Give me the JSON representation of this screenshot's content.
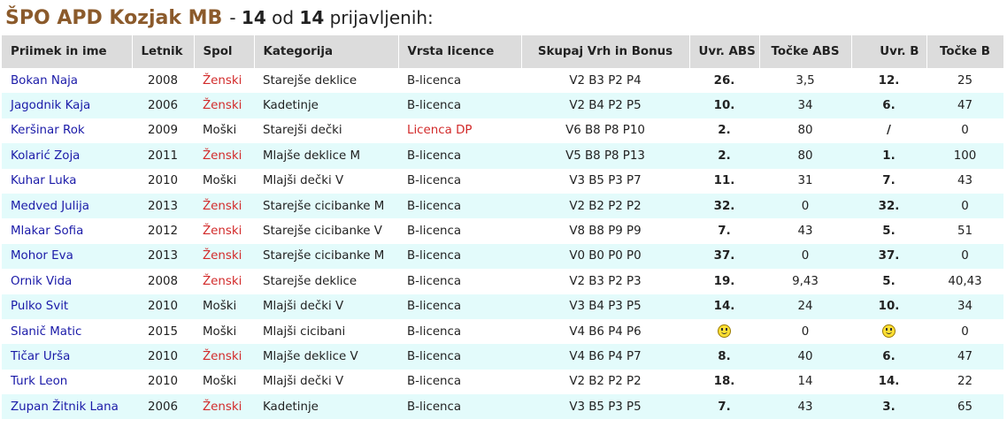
{
  "title": {
    "club": "ŠPO APD Kozjak MB",
    "dash": "-",
    "count_shown": "14",
    "of_label": "od",
    "count_total": "14",
    "suffix": "prijavljenih:"
  },
  "headers": {
    "name": "Priimek in ime",
    "year": "Letnik",
    "gender": "Spol",
    "category": "Kategorija",
    "license": "Vrsta licence",
    "total": "Skupaj Vrh in Bonus",
    "rank_abs": "Uvr. ABS",
    "points_abs": "Točke ABS",
    "rank_b": "Uvr. B",
    "points_b": "Točke B"
  },
  "colors": {
    "club_title": "#8b5a2b",
    "name_link": "#1a1aa8",
    "female_and_dp": "#d22a2a",
    "header_bg": "#dcdcdc",
    "row_alt_bg": "#e3fbfb"
  },
  "rows": [
    {
      "name": "Bokan Naja",
      "year": "2008",
      "gender": "Ženski",
      "female": true,
      "category": "Starejše deklice",
      "license": "B-licenca",
      "license_red": false,
      "total": "V2  B3  P2  P4",
      "rank_abs": "26.",
      "points_abs": "3,5",
      "rank_b": "12.",
      "points_b": "25"
    },
    {
      "name": "Jagodnik Kaja",
      "year": "2006",
      "gender": "Ženski",
      "female": true,
      "category": "Kadetinje",
      "license": "B-licenca",
      "license_red": false,
      "total": "V2  B4  P2  P5",
      "rank_abs": "10.",
      "points_abs": "34",
      "rank_b": "6.",
      "points_b": "47"
    },
    {
      "name": "Keršinar Rok",
      "year": "2009",
      "gender": "Moški",
      "female": false,
      "category": "Starejši dečki",
      "license": "Licenca DP",
      "license_red": true,
      "total": "V6  B8  P8  P10",
      "rank_abs": "2.",
      "points_abs": "80",
      "rank_b": "/",
      "points_b": "0"
    },
    {
      "name": "Kolarić Zoja",
      "year": "2011",
      "gender": "Ženski",
      "female": true,
      "category": "Mlajše deklice M",
      "license": "B-licenca",
      "license_red": false,
      "total": "V5  B8  P8  P13",
      "rank_abs": "2.",
      "points_abs": "80",
      "rank_b": "1.",
      "points_b": "100"
    },
    {
      "name": "Kuhar Luka",
      "year": "2010",
      "gender": "Moški",
      "female": false,
      "category": "Mlajši dečki V",
      "license": "B-licenca",
      "license_red": false,
      "total": "V3  B5  P3  P7",
      "rank_abs": "11.",
      "points_abs": "31",
      "rank_b": "7.",
      "points_b": "43"
    },
    {
      "name": "Medved Julija",
      "year": "2013",
      "gender": "Ženski",
      "female": true,
      "category": "Starejše cicibanke M",
      "license": "B-licenca",
      "license_red": false,
      "total": "V2  B2  P2  P2",
      "rank_abs": "32.",
      "points_abs": "0",
      "rank_b": "32.",
      "points_b": "0"
    },
    {
      "name": "Mlakar Sofia",
      "year": "2012",
      "gender": "Ženski",
      "female": true,
      "category": "Starejše cicibanke V",
      "license": "B-licenca",
      "license_red": false,
      "total": "V8  B8  P9  P9",
      "rank_abs": "7.",
      "points_abs": "43",
      "rank_b": "5.",
      "points_b": "51"
    },
    {
      "name": "Mohor Eva",
      "year": "2013",
      "gender": "Ženski",
      "female": true,
      "category": "Starejše cicibanke M",
      "license": "B-licenca",
      "license_red": false,
      "total": "V0  B0  P0  P0",
      "rank_abs": "37.",
      "points_abs": "0",
      "rank_b": "37.",
      "points_b": "0"
    },
    {
      "name": "Ornik Vida",
      "year": "2008",
      "gender": "Ženski",
      "female": true,
      "category": "Starejše deklice",
      "license": "B-licenca",
      "license_red": false,
      "total": "V2  B3  P2  P3",
      "rank_abs": "19.",
      "points_abs": "9,43",
      "rank_b": "5.",
      "points_b": "40,43"
    },
    {
      "name": "Pulko Svit",
      "year": "2010",
      "gender": "Moški",
      "female": false,
      "category": "Mlajši dečki V",
      "license": "B-licenca",
      "license_red": false,
      "total": "V3  B4  P3  P5",
      "rank_abs": "14.",
      "points_abs": "24",
      "rank_b": "10.",
      "points_b": "34"
    },
    {
      "name": "Slanič Matic",
      "year": "2015",
      "gender": "Moški",
      "female": false,
      "category": "Mlajši cicibani",
      "license": "B-licenca",
      "license_red": false,
      "total": "V4  B6  P4  P6",
      "rank_abs_icon": "smiley-icon",
      "points_abs": "0",
      "rank_b_icon": "smiley-icon",
      "points_b": "0"
    },
    {
      "name": "Tičar Urša",
      "year": "2010",
      "gender": "Ženski",
      "female": true,
      "category": "Mlajše deklice V",
      "license": "B-licenca",
      "license_red": false,
      "total": "V4  B6  P4  P7",
      "rank_abs": "8.",
      "points_abs": "40",
      "rank_b": "6.",
      "points_b": "47"
    },
    {
      "name": "Turk Leon",
      "year": "2010",
      "gender": "Moški",
      "female": false,
      "category": "Mlajši dečki V",
      "license": "B-licenca",
      "license_red": false,
      "total": "V2  B2  P2  P2",
      "rank_abs": "18.",
      "points_abs": "14",
      "rank_b": "14.",
      "points_b": "22"
    },
    {
      "name": "Zupan Žitnik Lana",
      "year": "2006",
      "gender": "Ženski",
      "female": true,
      "category": "Kadetinje",
      "license": "B-licenca",
      "license_red": false,
      "total": "V3  B5  P3  P5",
      "rank_abs": "7.",
      "points_abs": "43",
      "rank_b": "3.",
      "points_b": "65"
    }
  ]
}
